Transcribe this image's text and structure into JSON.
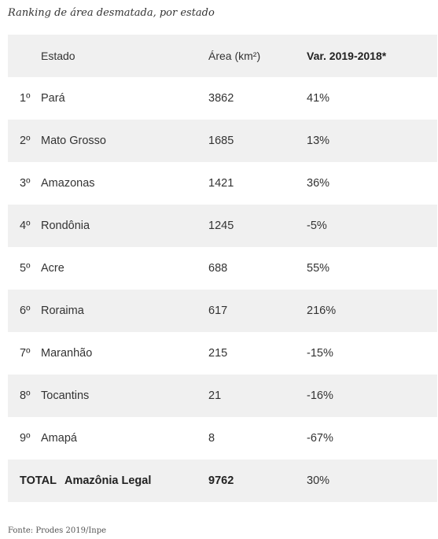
{
  "title": "Ranking de área desmatada, por estado",
  "columns": {
    "state": "Estado",
    "area": "Área (km²)",
    "variation": "Var. 2019-2018*"
  },
  "rows": [
    {
      "rank": "1º",
      "state": "Pará",
      "area": "3862",
      "variation": "41%"
    },
    {
      "rank": "2º",
      "state": "Mato Grosso",
      "area": "1685",
      "variation": "13%"
    },
    {
      "rank": "3º",
      "state": "Amazonas",
      "area": "1421",
      "variation": "36%"
    },
    {
      "rank": "4º",
      "state": "Rondônia",
      "area": "1245",
      "variation": "-5%"
    },
    {
      "rank": "5º",
      "state": "Acre",
      "area": "688",
      "variation": "55%"
    },
    {
      "rank": "6º",
      "state": "Roraima",
      "area": "617",
      "variation": "216%"
    },
    {
      "rank": "7º",
      "state": "Maranhão",
      "area": "215",
      "variation": "-15%"
    },
    {
      "rank": "8º",
      "state": "Tocantins",
      "area": "21",
      "variation": "-16%"
    },
    {
      "rank": "9º",
      "state": "Amapá",
      "area": "8",
      "variation": "-67%"
    }
  ],
  "total": {
    "label": "TOTAL",
    "state": "Amazônia Legal",
    "area": "9762",
    "variation": "30%"
  },
  "source": "Fonte: Prodes 2019/Inpe",
  "colors": {
    "stripe": "#f0f0f0",
    "text": "#333333"
  }
}
